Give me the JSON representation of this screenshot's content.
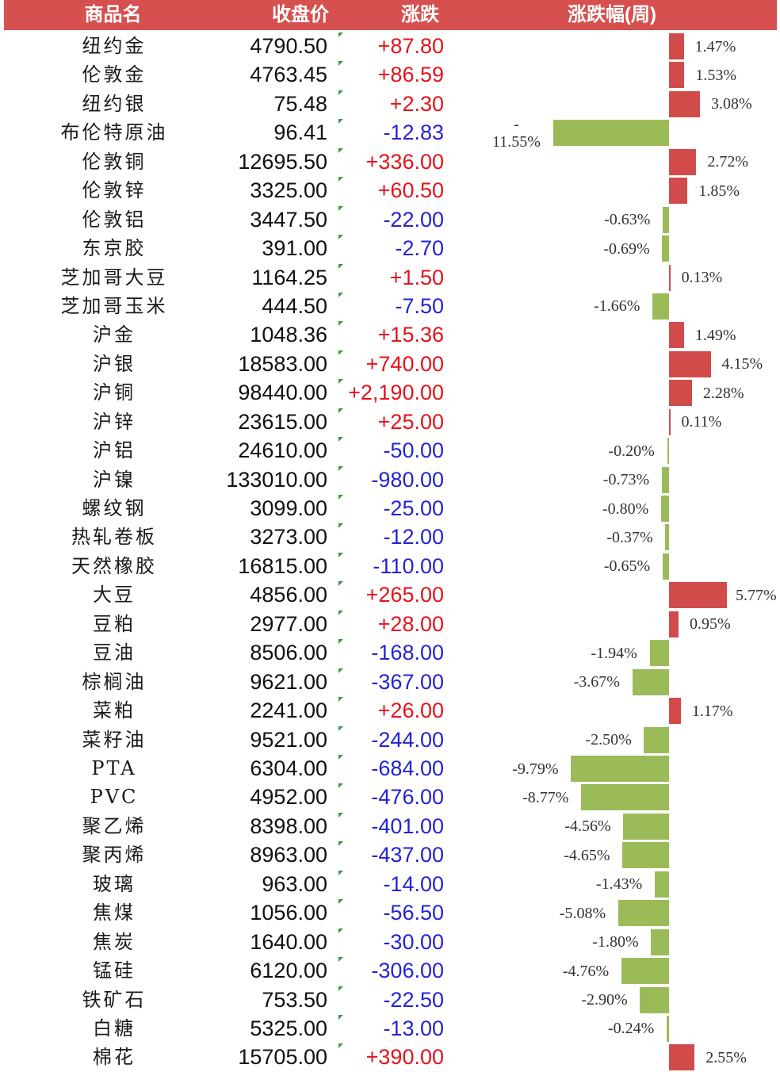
{
  "header": {
    "name": "商品名",
    "close": "收盘价",
    "change": "涨跌"
  },
  "colors": {
    "header_bg": "#d5504e",
    "header_text": "#ffffff",
    "up_text": "#e8111b",
    "down_text": "#2323d6",
    "up_bar": "#d24b4b",
    "down_bar": "#9bbb59",
    "marker": "#3c9a3c"
  },
  "icons": {
    "cell_indicator": "green-triangle-icon"
  },
  "chart_data": {
    "type": "bar",
    "orientation": "horizontal",
    "grid": false,
    "legend": false,
    "categories": [
      "纽约金",
      "伦敦金",
      "纽约银",
      "布伦特原油",
      "伦敦铜",
      "伦敦锌",
      "伦敦铝",
      "东京胶",
      "芝加哥大豆",
      "芝加哥玉米",
      "沪金",
      "沪银",
      "沪铜",
      "沪锌",
      "沪铝",
      "沪镍",
      "螺纹钢",
      "热轧卷板",
      "天然橡胶",
      "大豆",
      "豆粕",
      "豆油",
      "棕榈油",
      "菜粕",
      "菜籽油",
      "PTA",
      "PVC",
      "聚乙烯",
      "聚丙烯",
      "玻璃",
      "焦煤",
      "焦炭",
      "锰硅",
      "铁矿石",
      "白糖",
      "棉花"
    ],
    "close": [
      "4790.50",
      "4763.45",
      "75.48",
      "96.41",
      "12695.50",
      "3325.00",
      "3447.50",
      "391.00",
      "1164.25",
      "444.50",
      "1048.36",
      "18583.00",
      "98440.00",
      "23615.00",
      "24610.00",
      "133010.00",
      "3099.00",
      "3273.00",
      "16815.00",
      "4856.00",
      "2977.00",
      "8506.00",
      "9621.00",
      "2241.00",
      "9521.00",
      "6304.00",
      "4952.00",
      "8398.00",
      "8963.00",
      "963.00",
      "1056.00",
      "1640.00",
      "6120.00",
      "753.50",
      "5325.00",
      "15705.00"
    ],
    "change": [
      "+87.80",
      "+86.59",
      "+2.30",
      "-12.83",
      "+336.00",
      "+60.50",
      "-22.00",
      "-2.70",
      "+1.50",
      "-7.50",
      "+15.36",
      "+740.00",
      "+2,190.00",
      "+25.00",
      "-50.00",
      "-980.00",
      "-25.00",
      "-12.00",
      "-110.00",
      "+265.00",
      "+28.00",
      "-168.00",
      "-367.00",
      "+26.00",
      "-244.00",
      "-684.00",
      "-476.00",
      "-401.00",
      "-437.00",
      "-14.00",
      "-56.50",
      "-30.00",
      "-306.00",
      "-22.50",
      "-13.00",
      "+390.00"
    ],
    "series": [
      {
        "name": "涨跌幅(周)",
        "values": [
          1.47,
          1.53,
          3.08,
          -11.55,
          2.72,
          1.85,
          -0.63,
          -0.69,
          0.13,
          -1.66,
          1.49,
          4.15,
          2.28,
          0.11,
          -0.2,
          -0.73,
          -0.8,
          -0.37,
          -0.65,
          5.77,
          0.95,
          -1.94,
          -3.67,
          1.17,
          -2.5,
          -9.79,
          -8.77,
          -4.56,
          -4.65,
          -1.43,
          -5.08,
          -1.8,
          -4.76,
          -2.9,
          -0.24,
          2.55
        ],
        "labels": [
          "1.47%",
          "1.53%",
          "3.08%",
          "-\n11.55%",
          "2.72%",
          "1.85%",
          "-0.63%",
          "-0.69%",
          "0.13%",
          "-1.66%",
          "1.49%",
          "4.15%",
          "2.28%",
          "0.11%",
          "-0.20%",
          "-0.73%",
          "-0.80%",
          "-0.37%",
          "-0.65%",
          "5.77%",
          "0.95%",
          "-1.94%",
          "-3.67%",
          "1.17%",
          "-2.50%",
          "-9.79%",
          "-8.77%",
          "-4.56%",
          "-4.65%",
          "-1.43%",
          "-5.08%",
          "-1.80%",
          "-4.76%",
          "-2.90%",
          "-0.24%",
          "2.55%"
        ]
      }
    ],
    "xlim": [
      -11.55,
      5.77
    ]
  }
}
